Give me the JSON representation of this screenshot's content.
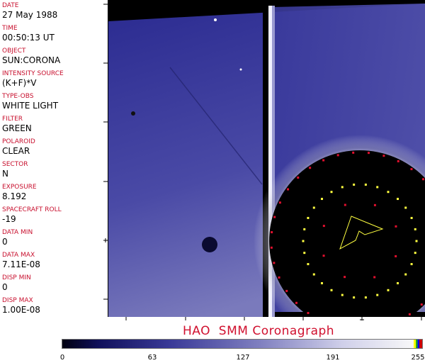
{
  "fields": [
    {
      "label": "DATE",
      "value": "27 May 1988"
    },
    {
      "label": "TIME",
      "value": "00:50:13 UT"
    },
    {
      "label": "OBJECT",
      "value": "SUN:CORONA"
    },
    {
      "label": "INTENSITY SOURCE",
      "value": "(K+F)*V"
    },
    {
      "label": "TYPE-OBS",
      "value": "WHITE LIGHT"
    },
    {
      "label": "FILTER",
      "value": "GREEN"
    },
    {
      "label": "POLAROID",
      "value": "CLEAR"
    },
    {
      "label": "SECTOR",
      "value": "N"
    },
    {
      "label": "EXPOSURE",
      "value": "8.192"
    },
    {
      "label": "SPACECRAFT ROLL",
      "value": "-19"
    },
    {
      "label": "DATA MIN",
      "value": "0"
    },
    {
      "label": "DATA MAX",
      "value": "7.11E-08"
    },
    {
      "label": "DISP MIN",
      "value": "0"
    },
    {
      "label": "DISP MAX",
      "value": "1.00E-08"
    }
  ],
  "title": "HAO  SMM Coronagraph",
  "colorbar": {
    "ticks": [
      "0",
      "63",
      "127",
      "191",
      "255"
    ],
    "colormap": "black-blue-white",
    "overlay_colors": [
      "#ffff00",
      "#22aa22",
      "#0000ff",
      "#cc0000"
    ]
  },
  "colors": {
    "label": "#c8102e",
    "marker_red": "#e0102e",
    "marker_yellow": "#ffff40"
  }
}
